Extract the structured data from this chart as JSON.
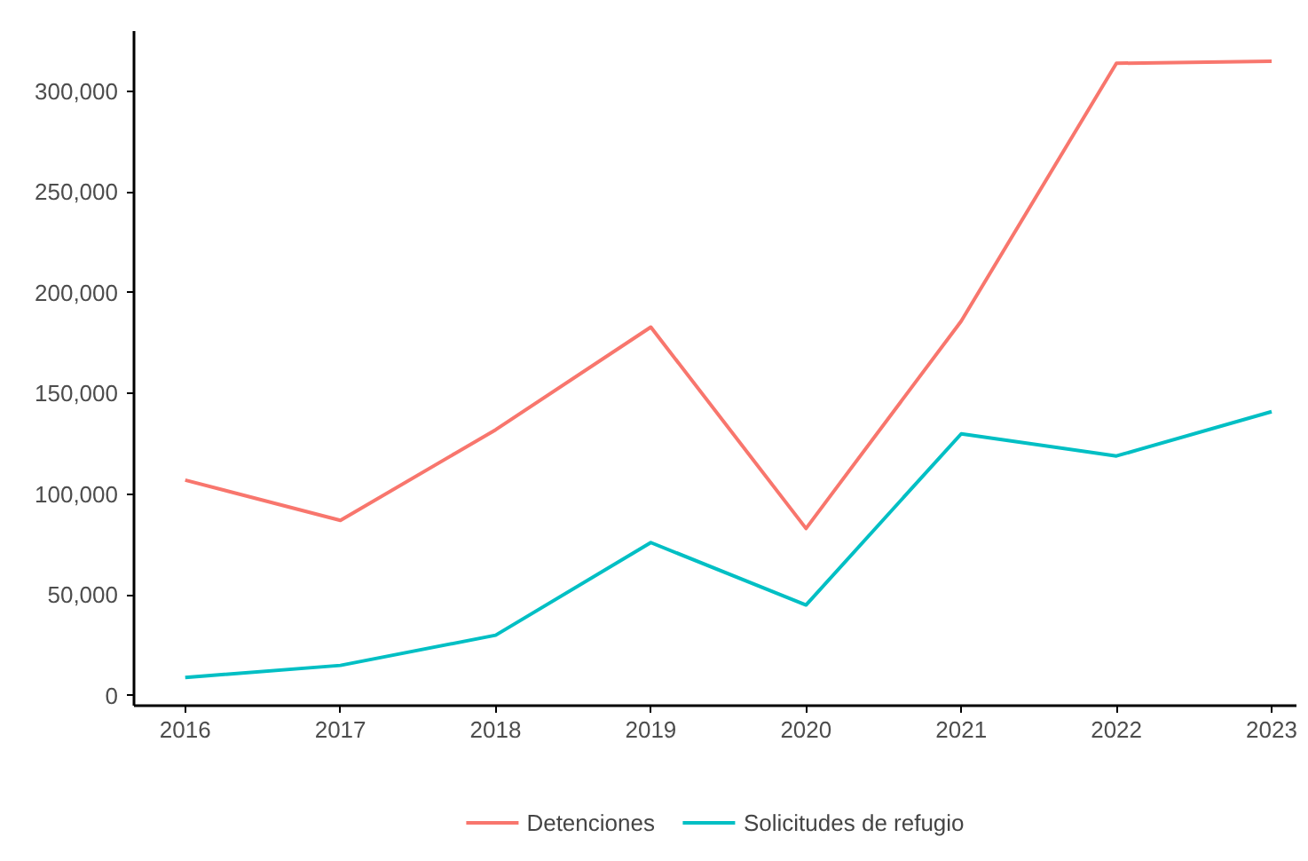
{
  "chart_data": {
    "type": "line",
    "x": [
      2016,
      2017,
      2018,
      2019,
      2020,
      2021,
      2022,
      2023
    ],
    "series": [
      {
        "name": "Detenciones",
        "color": "#f8766d",
        "values": [
          107000,
          87000,
          132000,
          183000,
          83000,
          186000,
          314000,
          315000
        ]
      },
      {
        "name": "Solicitudes de refugio",
        "color": "#00bfc4",
        "values": [
          9000,
          15000,
          30000,
          76000,
          45000,
          130000,
          119000,
          141000
        ]
      }
    ],
    "xlim": [
      2015.67,
      2023.16
    ],
    "xticks": [
      2016,
      2017,
      2018,
      2019,
      2020,
      2021,
      2022,
      2023
    ],
    "ylim": [
      -5000,
      330000
    ],
    "yticks": [
      {
        "value": 0,
        "label": "0"
      },
      {
        "value": 50000,
        "label": "50,000"
      },
      {
        "value": 100000,
        "label": "100,000"
      },
      {
        "value": 150000,
        "label": "150,000"
      },
      {
        "value": 200000,
        "label": "200,000"
      },
      {
        "value": 250000,
        "label": "250,000"
      },
      {
        "value": 300000,
        "label": "300,000"
      }
    ],
    "grid": false,
    "legend": "bottom",
    "marker": "none",
    "line_style": "solid"
  }
}
